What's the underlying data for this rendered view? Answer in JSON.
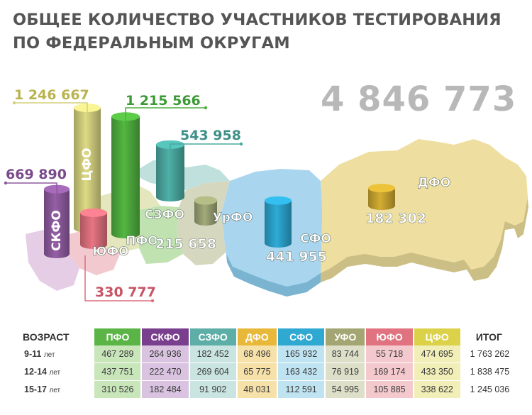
{
  "title_line1": "ОБЩЕЕ КОЛИЧЕСТВО УЧАСТНИКОВ ТЕСТИРОВАНИЯ",
  "title_line2": "ПО ФЕДЕРАЛЬНЫМ ОКРУГАМ",
  "total": "4 846 773",
  "chart_data": {
    "type": "bar",
    "categories": [
      "ЦФО",
      "ПФО",
      "СЗФО",
      "СКФО",
      "ЮФО",
      "УрФО",
      "СФО",
      "ДФО"
    ],
    "values": [
      1246667,
      1215566,
      543958,
      669890,
      330777,
      215658,
      441955,
      182302
    ],
    "value_labels": [
      "1 246 667",
      "1 215 566",
      "543 958",
      "669 890",
      "330 777",
      "215 658",
      "441 955",
      "182 302"
    ],
    "colors": [
      "#d3d07e",
      "#4fae3e",
      "#4aa8a0",
      "#8e5a9e",
      "#dc6f7c",
      "#9aa173",
      "#2ba3cc",
      "#c9a530"
    ]
  },
  "table": {
    "header_age": "ВОЗРАСТ",
    "header_total": "ИТОГ",
    "districts": [
      "ПФО",
      "СКФО",
      "СЗФО",
      "ДФО",
      "СФО",
      "УФО",
      "ЮФО",
      "ЦФО"
    ],
    "header_colors": [
      "#5bb446",
      "#7a3e8e",
      "#5daea6",
      "#e8b83a",
      "#2fa8d2",
      "#a3a572",
      "#e0737f",
      "#dcd24a"
    ],
    "cell_colors": [
      "#c9e6bb",
      "#d9c3e0",
      "#c9e4e1",
      "#f6e1a8",
      "#bfe3f1",
      "#dddfc9",
      "#f4c9ce",
      "#f1eeb7"
    ],
    "unit": "лет",
    "rows": [
      {
        "age": "9-11",
        "values": [
          "467 289",
          "264 936",
          "182 452",
          "68 496",
          "165 932",
          "83 744",
          "55 718",
          "474 695"
        ],
        "total": "1 763 262"
      },
      {
        "age": "12-14",
        "values": [
          "437 751",
          "222 470",
          "269 604",
          "65 775",
          "163 432",
          "76 919",
          "169 174",
          "433 350"
        ],
        "total": "1 838 475"
      },
      {
        "age": "15-17",
        "values": [
          "310 526",
          "182 484",
          "91 902",
          "48 031",
          "112 591",
          "54 995",
          "105 885",
          "338 622"
        ],
        "total": "1 245 036"
      }
    ]
  }
}
